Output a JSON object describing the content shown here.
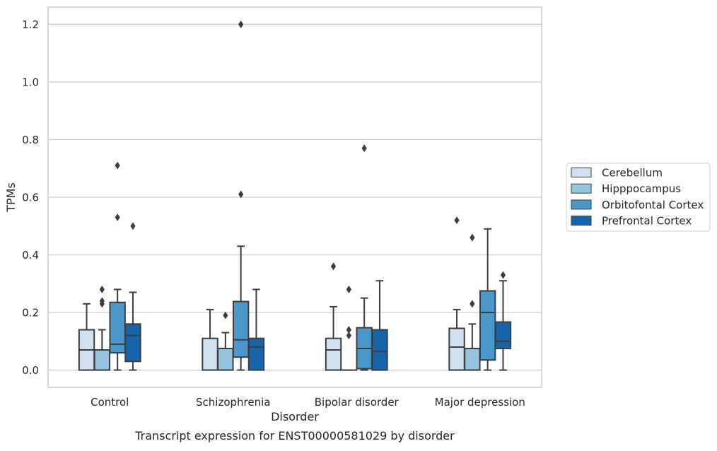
{
  "chart_data": {
    "type": "boxplot",
    "title": "",
    "caption": "Transcript expression for ENST00000581029 by disorder",
    "xlabel": "Disorder",
    "ylabel": "TPMs",
    "ylim": [
      -0.06,
      1.26
    ],
    "yticks": [
      0.0,
      0.2,
      0.4,
      0.6,
      0.8,
      1.0,
      1.2
    ],
    "ytick_labels": [
      "0.0",
      "0.2",
      "0.4",
      "0.6",
      "0.8",
      "1.0",
      "1.2"
    ],
    "grid": true,
    "legend_position": "right",
    "categories": [
      "Control",
      "Schizophrenia",
      "Bipolar disorder",
      "Major depression"
    ],
    "series": [
      {
        "name": "Cerebellum",
        "color": "#d0e1f2",
        "boxes": [
          {
            "q1": 0.0,
            "median": 0.07,
            "q3": 0.14,
            "whislo": 0.0,
            "whishi": 0.23,
            "outliers": []
          },
          {
            "q1": 0.0,
            "median": 0.0,
            "q3": 0.11,
            "whislo": 0.0,
            "whishi": 0.21,
            "outliers": []
          },
          {
            "q1": 0.0,
            "median": 0.07,
            "q3": 0.11,
            "whislo": 0.0,
            "whishi": 0.22,
            "outliers": [
              0.36
            ]
          },
          {
            "q1": 0.0,
            "median": 0.08,
            "q3": 0.145,
            "whislo": 0.0,
            "whishi": 0.21,
            "outliers": [
              0.52
            ]
          }
        ]
      },
      {
        "name": "Hipppocampus",
        "color": "#94c4df",
        "boxes": [
          {
            "q1": 0.0,
            "median": 0.0,
            "q3": 0.07,
            "whislo": 0.0,
            "whishi": 0.14,
            "outliers": [
              0.28,
              0.24,
              0.23
            ]
          },
          {
            "q1": 0.0,
            "median": 0.0,
            "q3": 0.075,
            "whislo": 0.0,
            "whishi": 0.13,
            "outliers": [
              0.19
            ]
          },
          {
            "q1": 0.0,
            "median": 0.0,
            "q3": 0.0,
            "whislo": 0.0,
            "whishi": 0.0,
            "outliers": [
              0.28,
              0.14,
              0.12
            ]
          },
          {
            "q1": 0.0,
            "median": 0.0,
            "q3": 0.075,
            "whislo": 0.0,
            "whishi": 0.16,
            "outliers": [
              0.46,
              0.23
            ]
          }
        ]
      },
      {
        "name": "Orbitofontal Cortex",
        "color": "#4a98c9",
        "boxes": [
          {
            "q1": 0.06,
            "median": 0.09,
            "q3": 0.235,
            "whislo": 0.0,
            "whishi": 0.28,
            "outliers": [
              0.71,
              0.53
            ]
          },
          {
            "q1": 0.045,
            "median": 0.105,
            "q3": 0.238,
            "whislo": 0.0,
            "whishi": 0.43,
            "outliers": [
              1.2,
              0.61
            ]
          },
          {
            "q1": 0.005,
            "median": 0.075,
            "q3": 0.147,
            "whislo": 0.0,
            "whishi": 0.25,
            "outliers": [
              0.77
            ]
          },
          {
            "q1": 0.035,
            "median": 0.2,
            "q3": 0.275,
            "whislo": 0.0,
            "whishi": 0.49,
            "outliers": []
          }
        ]
      },
      {
        "name": "Prefrontal Cortex",
        "color": "#1764ab",
        "boxes": [
          {
            "q1": 0.03,
            "median": 0.12,
            "q3": 0.16,
            "whislo": 0.0,
            "whishi": 0.27,
            "outliers": [
              0.5
            ]
          },
          {
            "q1": 0.0,
            "median": 0.08,
            "q3": 0.11,
            "whislo": 0.0,
            "whishi": 0.28,
            "outliers": []
          },
          {
            "q1": 0.0,
            "median": 0.065,
            "q3": 0.14,
            "whislo": 0.0,
            "whishi": 0.31,
            "outliers": []
          },
          {
            "q1": 0.075,
            "median": 0.1,
            "q3": 0.167,
            "whislo": 0.0,
            "whishi": 0.31,
            "outliers": [
              0.33
            ]
          }
        ]
      }
    ]
  }
}
